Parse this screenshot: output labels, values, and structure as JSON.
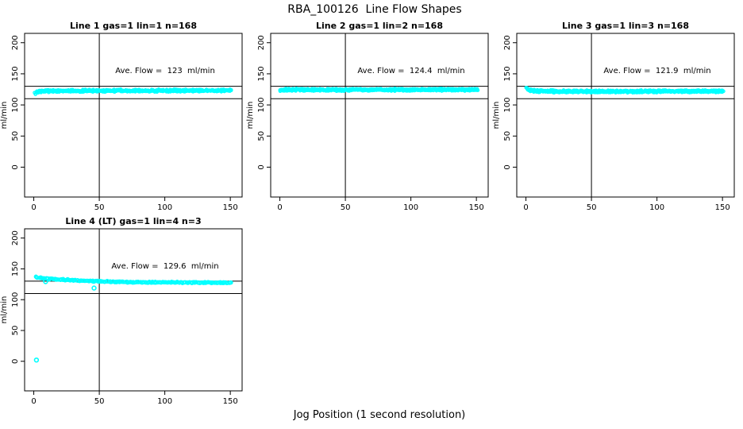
{
  "chart_data": {
    "type": "scatter",
    "title": "RBA_100126  Line Flow Shapes",
    "xlabel": "Jog Position (1 second resolution)",
    "ylabel": "ml/min",
    "xticks": [
      0,
      50,
      100,
      150
    ],
    "yticks": [
      0,
      50,
      100,
      150,
      200
    ],
    "xlim": [
      -7,
      159
    ],
    "ylim": [
      -48,
      215
    ],
    "grid": false,
    "legend": "none",
    "point_color": "#00ffff",
    "line_color": "#000000",
    "reference_lines": {
      "upper": 130,
      "lower": 110,
      "vertical_x": 50
    },
    "plots": [
      {
        "title": "Line 1 gas=1 lin=1 n=168",
        "ave_flow": 123,
        "ave_flow_label": "Ave. Flow =  123  ml/min",
        "n": 168,
        "seed": 7,
        "n_dots": 620,
        "dot_r": 1.7,
        "band_halfwidth": 2.2,
        "x_start": 1,
        "x_end": 150.5,
        "keypoints": [
          [
            1,
            118.5
          ],
          [
            2,
            120.5
          ],
          [
            4,
            121.8
          ],
          [
            10,
            122.4
          ],
          [
            30,
            122.7
          ],
          [
            70,
            122.9
          ],
          [
            110,
            123.1
          ],
          [
            150,
            123.2
          ]
        ],
        "outliers": []
      },
      {
        "title": "Line 2 gas=1 lin=2 n=168",
        "ave_flow": 124.4,
        "ave_flow_label": "Ave. Flow =  124.4  ml/min",
        "n": 168,
        "seed": 13,
        "n_dots": 620,
        "dot_r": 1.7,
        "band_halfwidth": 2.2,
        "x_start": 0.5,
        "x_end": 150.5,
        "keypoints": [
          [
            0.5,
            123.5
          ],
          [
            2,
            124.2
          ],
          [
            10,
            124.3
          ],
          [
            50,
            124.2
          ],
          [
            100,
            124.4
          ],
          [
            150,
            124.6
          ]
        ],
        "outliers": []
      },
      {
        "title": "Line 3 gas=1 lin=3 n=168",
        "ave_flow": 121.9,
        "ave_flow_label": "Ave. Flow =  121.9  ml/min",
        "n": 168,
        "seed": 29,
        "n_dots": 620,
        "dot_r": 1.7,
        "band_halfwidth": 2.2,
        "x_start": 0.5,
        "x_end": 150.5,
        "keypoints": [
          [
            0.5,
            126.5
          ],
          [
            2,
            124.8
          ],
          [
            5,
            122.8
          ],
          [
            12,
            122.0
          ],
          [
            30,
            121.7
          ],
          [
            70,
            121.7
          ],
          [
            110,
            121.9
          ],
          [
            150,
            122.1
          ]
        ],
        "outliers": []
      },
      {
        "title": "Line 4 (LT) gas=1 lin=4 n=3",
        "ave_flow": 129.6,
        "ave_flow_label": "Ave. Flow =  129.6  ml/min",
        "n": 3,
        "seed": 41,
        "n_dots": 240,
        "dot_r": 2.0,
        "band_halfwidth": 1.2,
        "x_start": 2,
        "x_end": 150.5,
        "keypoints": [
          [
            2,
            136.3
          ],
          [
            4,
            135.4
          ],
          [
            8,
            134.4
          ],
          [
            15,
            133.4
          ],
          [
            25,
            132.2
          ],
          [
            40,
            130.7
          ],
          [
            55,
            129.4
          ],
          [
            70,
            128.7
          ],
          [
            90,
            128.2
          ],
          [
            120,
            127.8
          ],
          [
            150,
            127.4
          ]
        ],
        "outliers": [
          [
            2,
            2
          ],
          [
            9,
            129.3
          ],
          [
            46,
            118.8
          ]
        ]
      }
    ]
  }
}
